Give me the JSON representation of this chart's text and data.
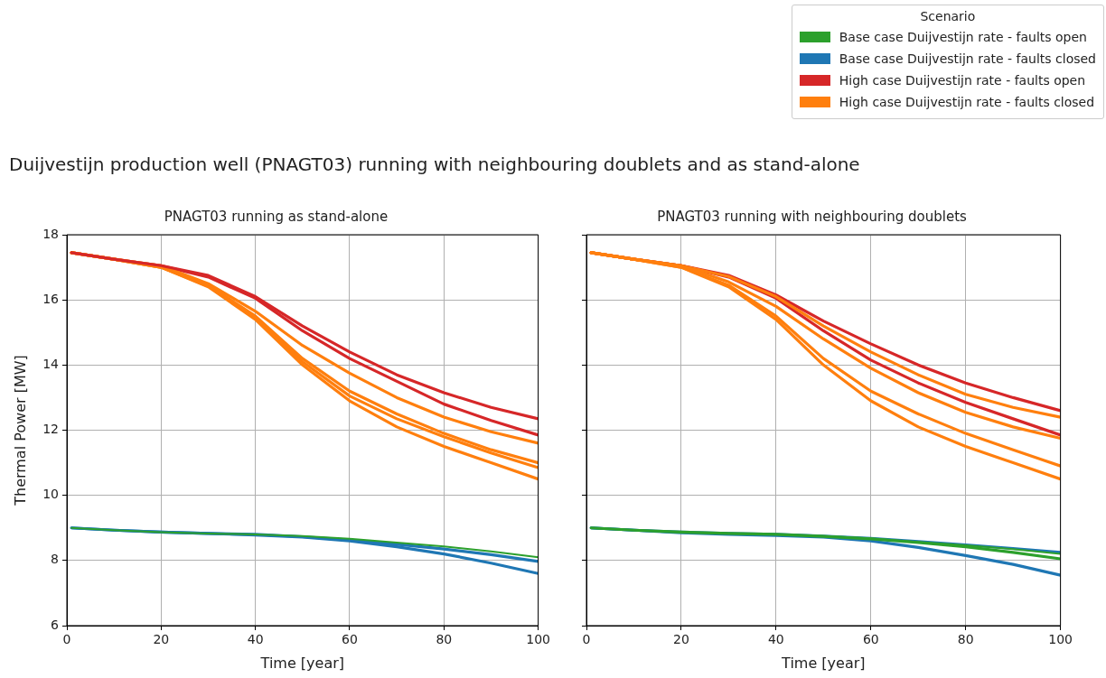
{
  "chart_data": [
    {
      "type": "line",
      "title": "PNAGT03 running as stand-alone",
      "xlabel": "Time [year]",
      "ylabel": "Thermal Power [MW]",
      "annotations": [
        "Duijvestijn production well (PNAGT03) running with neighbouring doublets and as stand-alone"
      ],
      "legend": "top right",
      "legend_title": "Scenario",
      "grid": true,
      "line_style": "solid",
      "x": [
        1,
        10,
        20,
        30,
        40,
        50,
        60,
        70,
        80,
        90,
        100
      ],
      "xlim": [
        0,
        100
      ],
      "ylim": [
        6,
        18
      ],
      "xticks": [
        0,
        20,
        40,
        60,
        80,
        100
      ],
      "yticks": [
        6,
        8,
        10,
        12,
        14,
        16,
        18
      ],
      "series": [
        {
          "name": "Base case Duijvestijn rate - faults open",
          "color": "#2ca02c",
          "values": [
            9.0,
            8.93,
            8.87,
            8.83,
            8.8,
            8.75,
            8.67,
            8.55,
            8.43,
            8.28,
            8.1
          ]
        },
        {
          "name": "Base case Duijvestijn rate - faults closed",
          "color": "#1f77b4",
          "values": [
            9.0,
            8.93,
            8.87,
            8.83,
            8.8,
            8.73,
            8.63,
            8.5,
            8.35,
            8.18,
            7.97
          ]
        },
        {
          "name": "High case Duijvestijn rate - faults open",
          "color": "#d62728",
          "values": [
            17.45,
            17.25,
            17.05,
            16.75,
            16.1,
            15.2,
            14.4,
            13.7,
            13.15,
            12.7,
            12.35
          ]
        },
        {
          "name": "High case Duijvestijn rate - faults closed",
          "color": "#ff7f0e",
          "values": [
            17.45,
            17.25,
            17.05,
            16.5,
            15.65,
            14.6,
            13.75,
            13.0,
            12.4,
            11.95,
            11.6
          ]
        },
        {
          "color": "#1f77b4",
          "values": [
            9.0,
            8.93,
            8.87,
            8.83,
            8.78,
            8.72,
            8.6,
            8.42,
            8.2,
            7.92,
            7.6
          ]
        },
        {
          "color": "#ff7f0e",
          "values": [
            17.45,
            17.25,
            17.0,
            16.45,
            15.5,
            14.2,
            13.2,
            12.5,
            11.9,
            11.4,
            11.0
          ]
        },
        {
          "color": "#ff7f0e",
          "values": [
            17.45,
            17.25,
            17.0,
            16.42,
            15.45,
            14.1,
            13.05,
            12.35,
            11.8,
            11.3,
            10.85
          ]
        },
        {
          "color": "#ff7f0e",
          "values": [
            17.45,
            17.25,
            17.0,
            16.4,
            15.4,
            14.0,
            12.9,
            12.1,
            11.5,
            11.0,
            10.5
          ]
        },
        {
          "color": "#d62728",
          "values": [
            17.45,
            17.25,
            17.05,
            16.7,
            16.05,
            15.05,
            14.2,
            13.5,
            12.8,
            12.3,
            11.85
          ]
        }
      ]
    },
    {
      "type": "line",
      "title": "PNAGT03 running with neighbouring doublets",
      "xlabel": "Time [year]",
      "grid": true,
      "line_style": "solid",
      "tick_labels": "x",
      "x": [
        1,
        10,
        20,
        30,
        40,
        50,
        60,
        70,
        80,
        90,
        100
      ],
      "xlim": [
        0,
        100
      ],
      "ylim": [
        6,
        18
      ],
      "xticks": [
        0,
        20,
        40,
        60,
        80,
        100
      ],
      "yticks": [
        6,
        8,
        10,
        12,
        14,
        16,
        18
      ],
      "series": [
        {
          "color": "#2ca02c",
          "values": [
            9.0,
            8.93,
            8.87,
            8.83,
            8.8,
            8.75,
            8.68,
            8.57,
            8.47,
            8.35,
            8.2
          ]
        },
        {
          "color": "#2ca02c",
          "values": [
            9.0,
            8.93,
            8.87,
            8.83,
            8.8,
            8.74,
            8.66,
            8.55,
            8.42,
            8.25,
            8.05
          ]
        },
        {
          "color": "#1f77b4",
          "values": [
            9.0,
            8.93,
            8.87,
            8.83,
            8.8,
            8.75,
            8.68,
            8.58,
            8.48,
            8.37,
            8.25
          ]
        },
        {
          "color": "#1f77b4",
          "values": [
            9.0,
            8.93,
            8.85,
            8.8,
            8.77,
            8.72,
            8.6,
            8.4,
            8.15,
            7.88,
            7.55
          ]
        },
        {
          "color": "#ff7f0e",
          "values": [
            17.45,
            17.25,
            17.05,
            16.72,
            16.1,
            15.2,
            14.4,
            13.7,
            13.1,
            12.7,
            12.4
          ]
        },
        {
          "color": "#ff7f0e",
          "values": [
            17.45,
            17.25,
            17.05,
            16.55,
            15.8,
            14.8,
            13.9,
            13.15,
            12.55,
            12.1,
            11.75
          ]
        },
        {
          "color": "#ff7f0e",
          "values": [
            17.45,
            17.25,
            17.0,
            16.45,
            15.5,
            14.2,
            13.2,
            12.5,
            11.9,
            11.4,
            10.9
          ]
        },
        {
          "color": "#ff7f0e",
          "values": [
            17.45,
            17.25,
            17.0,
            16.4,
            15.4,
            14.0,
            12.9,
            12.1,
            11.5,
            11.0,
            10.5
          ]
        },
        {
          "color": "#d62728",
          "values": [
            17.45,
            17.25,
            17.05,
            16.75,
            16.15,
            15.35,
            14.65,
            14.0,
            13.45,
            13.0,
            12.6
          ]
        },
        {
          "color": "#d62728",
          "values": [
            17.45,
            17.25,
            17.05,
            16.7,
            16.05,
            15.05,
            14.15,
            13.45,
            12.85,
            12.35,
            11.85
          ]
        }
      ]
    }
  ]
}
